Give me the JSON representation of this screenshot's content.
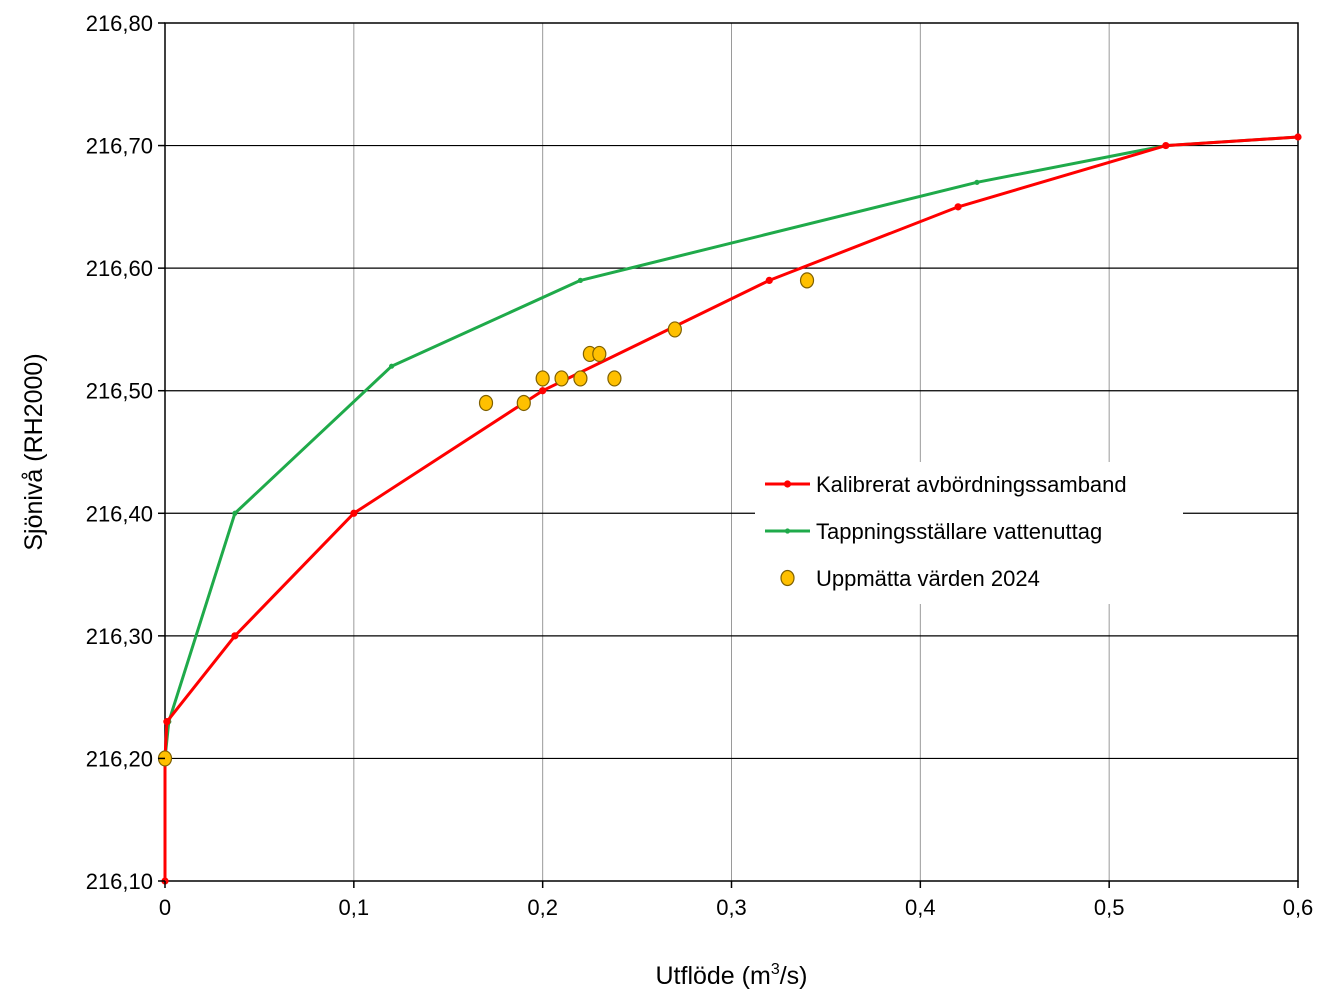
{
  "chart_data": {
    "type": "line",
    "title": "",
    "xlabel": "Utflöde (m",
    "xlabel_sup": "3",
    "xlabel_suffix": "/s)",
    "ylabel": "Sjönivå (RH2000)",
    "xlim": [
      0,
      0.6
    ],
    "ylim": [
      216.1,
      216.8
    ],
    "x_ticks": [
      0,
      0.1,
      0.2,
      0.3,
      0.4,
      0.5,
      0.6
    ],
    "x_tick_labels": [
      "0",
      "0,1",
      "0,2",
      "0,3",
      "0,4",
      "0,5",
      "0,6"
    ],
    "y_ticks": [
      216.1,
      216.2,
      216.3,
      216.4,
      216.5,
      216.6,
      216.7,
      216.8
    ],
    "y_tick_labels": [
      "216,10",
      "216,20",
      "216,30",
      "216,40",
      "216,50",
      "216,60",
      "216,70",
      "216,80"
    ],
    "grid": true,
    "legend_position": "right",
    "series": [
      {
        "name": "Kalibrerat avbördningssamband",
        "kind": "line",
        "color": "#ff0000",
        "points": [
          [
            0,
            216.1
          ],
          [
            0,
            216.2
          ],
          [
            0.001,
            216.23
          ],
          [
            0.037,
            216.3
          ],
          [
            0.1,
            216.4
          ],
          [
            0.2,
            216.5
          ],
          [
            0.32,
            216.59
          ],
          [
            0.42,
            216.65
          ],
          [
            0.53,
            216.7
          ],
          [
            0.6,
            216.707
          ]
        ]
      },
      {
        "name": "Tappningsställare vattenuttag",
        "kind": "line",
        "color": "#1faa4a",
        "points": [
          [
            0,
            216.1
          ],
          [
            0,
            216.2
          ],
          [
            0.002,
            216.23
          ],
          [
            0.037,
            216.4
          ],
          [
            0.12,
            216.52
          ],
          [
            0.22,
            216.59
          ],
          [
            0.43,
            216.67
          ],
          [
            0.53,
            216.7
          ],
          [
            0.6,
            216.707
          ]
        ]
      },
      {
        "name": "Uppmätta värden 2024",
        "kind": "scatter",
        "color": "#ffc000",
        "stroke": "#7f6000",
        "points": [
          [
            0,
            216.2
          ],
          [
            0.17,
            216.49
          ],
          [
            0.19,
            216.49
          ],
          [
            0.2,
            216.51
          ],
          [
            0.21,
            216.51
          ],
          [
            0.22,
            216.51
          ],
          [
            0.225,
            216.53
          ],
          [
            0.23,
            216.53
          ],
          [
            0.238,
            216.51
          ],
          [
            0.27,
            216.55
          ],
          [
            0.34,
            216.59
          ]
        ]
      }
    ]
  }
}
